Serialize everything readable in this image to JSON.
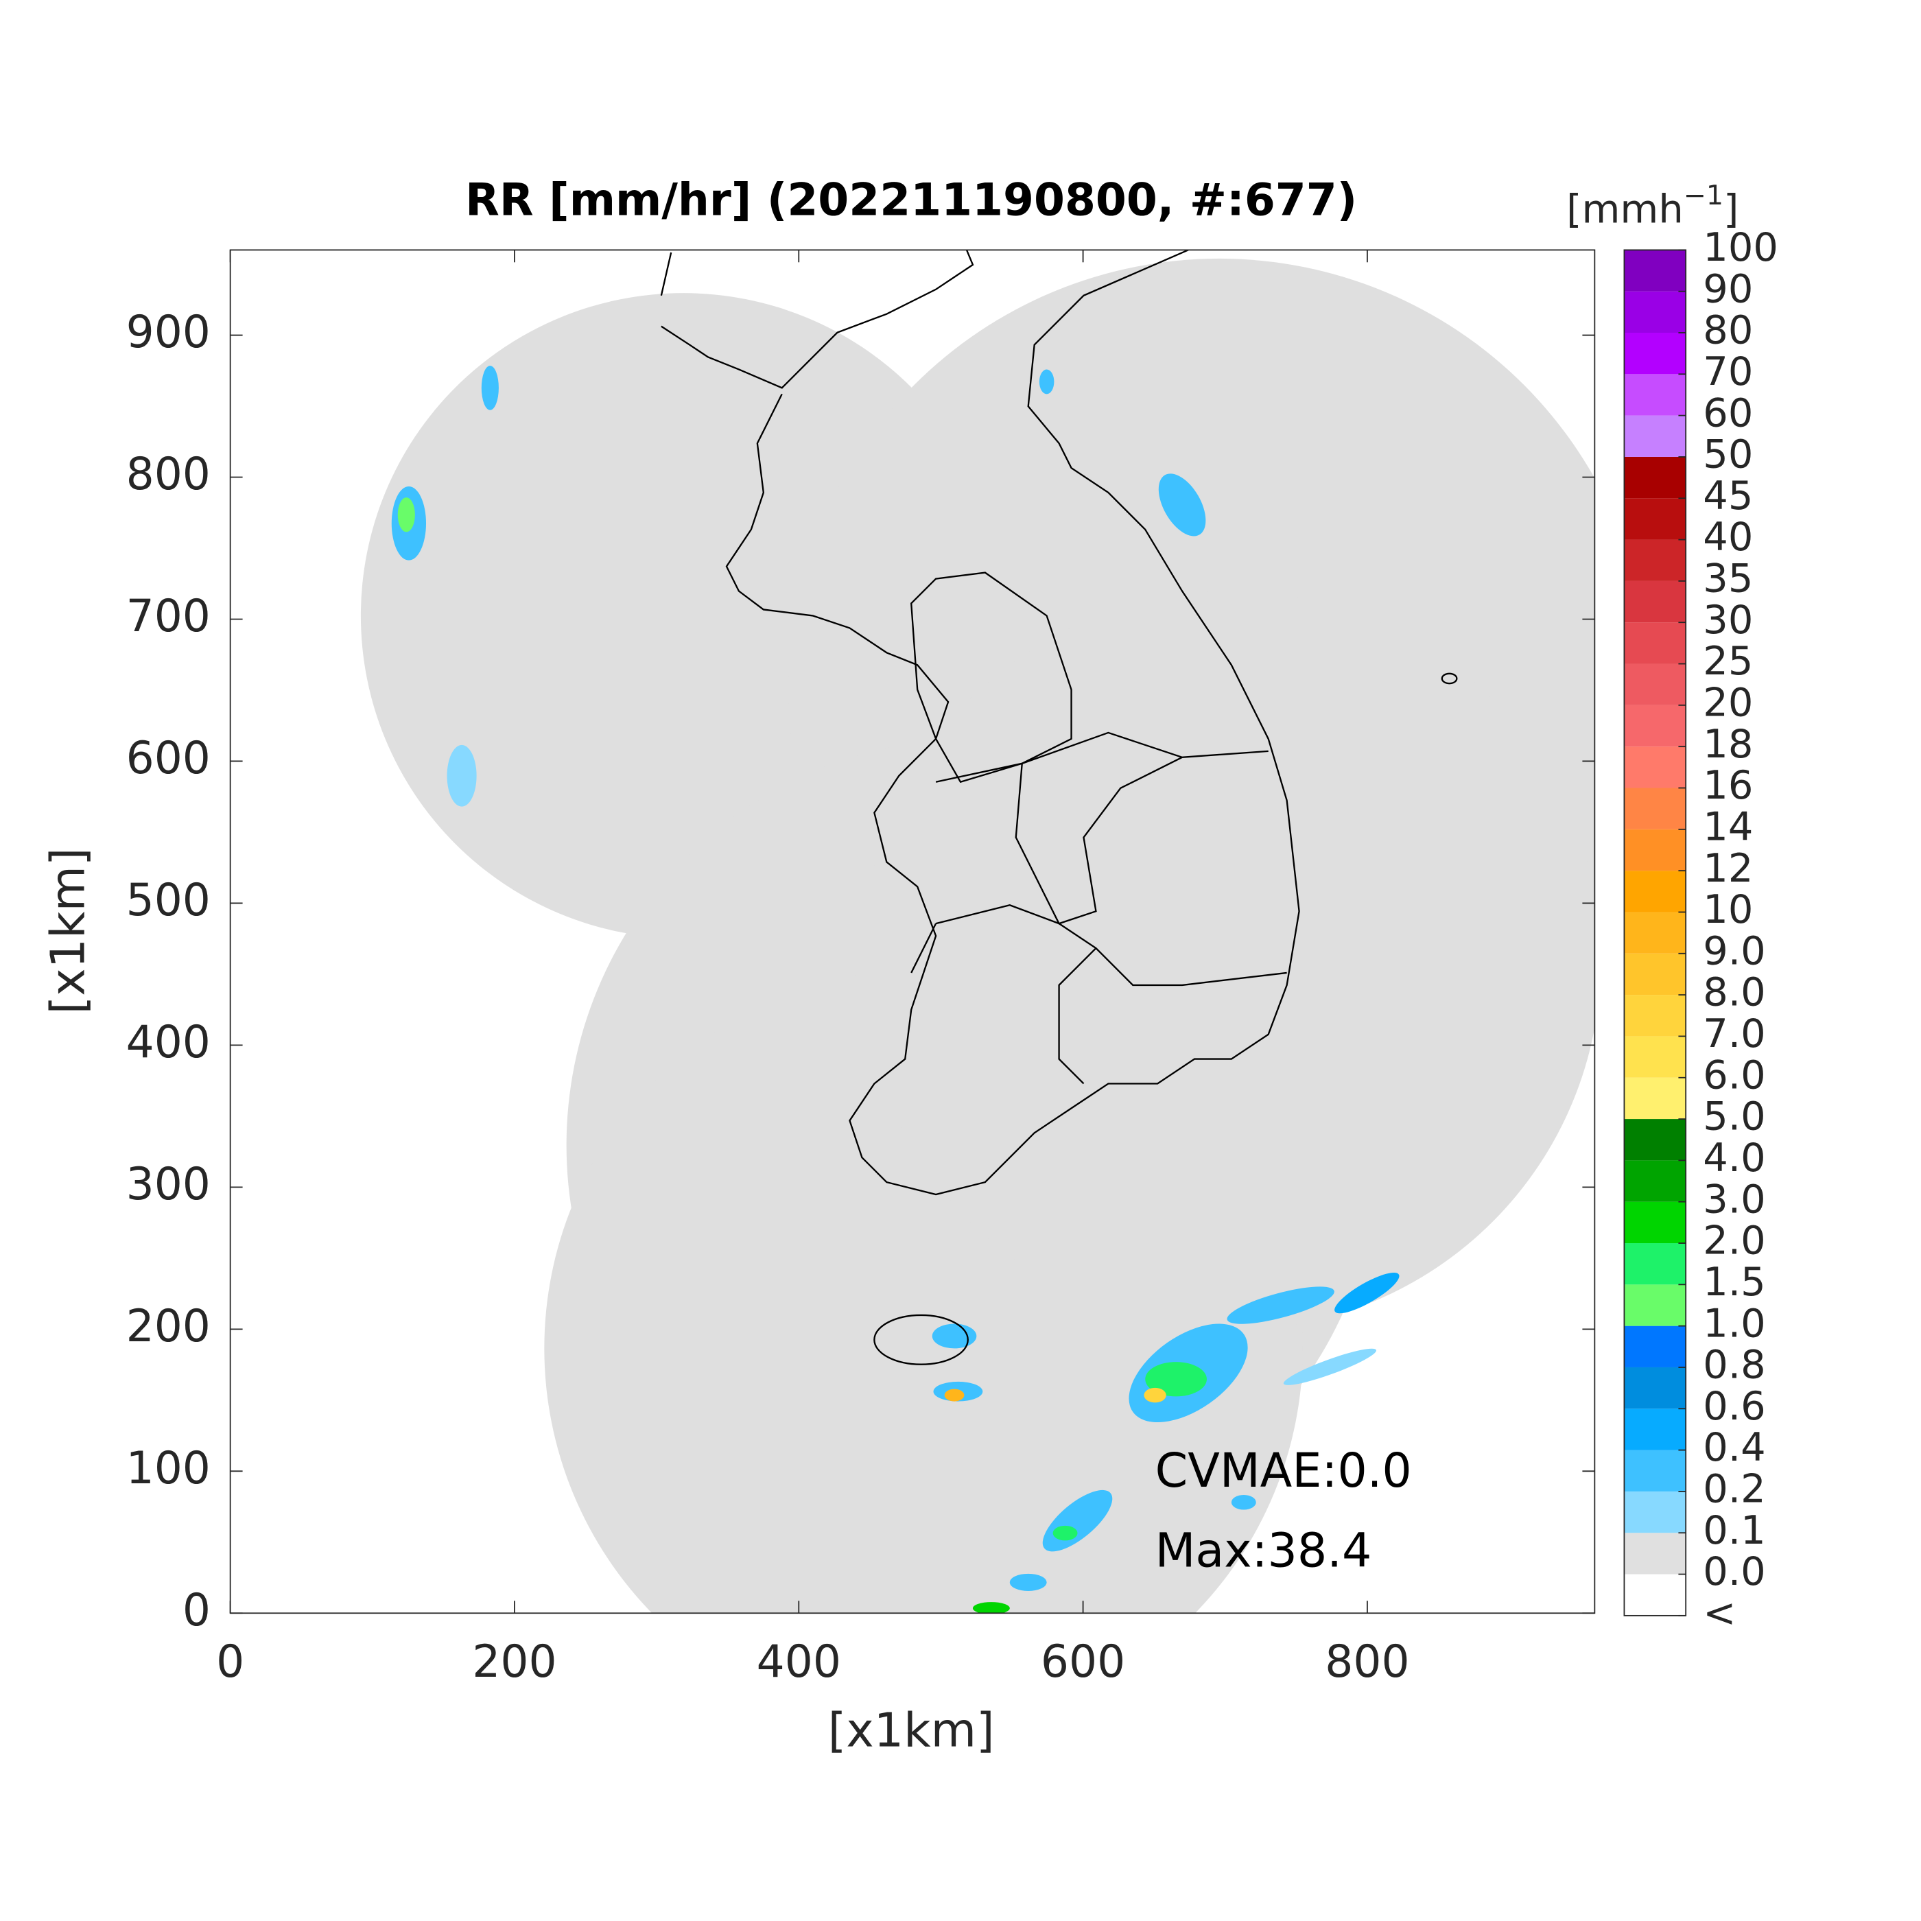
{
  "chart_data": {
    "type": "map",
    "title": "RR [mm/hr] (202211190800, #:677)",
    "x_label": "[x1km]",
    "y_label": "[x1km]",
    "xlim": [
      0,
      960
    ],
    "ylim": [
      0,
      960
    ],
    "xticks": [
      0,
      200,
      400,
      600,
      800
    ],
    "yticks": [
      0,
      100,
      200,
      300,
      400,
      500,
      600,
      700,
      800,
      900
    ],
    "annotations": [
      "CVMAE:0.0",
      "Max:38.4"
    ],
    "colorbar": {
      "label": "[mmh",
      "label_sup": "−1",
      "label_end": "]",
      "levels": [
        "<",
        "0.0",
        "0.1",
        "0.2",
        "0.4",
        "0.6",
        "0.8",
        "1.0",
        "1.5",
        "2.0",
        "3.0",
        "4.0",
        "5.0",
        "6.0",
        "7.0",
        "8.0",
        "9.0",
        "10",
        "12",
        "14",
        "16",
        "18",
        "20",
        "25",
        "30",
        "35",
        "40",
        "45",
        "50",
        "60",
        "70",
        "80",
        "90",
        "100"
      ],
      "colors": [
        "#ffffff",
        "#e0e0e0",
        "#87d9ff",
        "#3ec1ff",
        "#07abff",
        "#008dde",
        "#0077ff",
        "#69fc69",
        "#1ef269",
        "#00d500",
        "#00a400",
        "#008000",
        "#fff06e",
        "#ffe24e",
        "#ffd43c",
        "#ffc52b",
        "#ffb51b",
        "#ffa500",
        "#ff9025",
        "#ff8545",
        "#ff7a6a",
        "#f6686b",
        "#ee5a61",
        "#e64a52",
        "#d9363f",
        "#cc2528",
        "#b80e0e",
        "#a80000",
        "#c680ff",
        "#c64cff",
        "#b300ff",
        "#9a00e6",
        "#8000c0",
        "#333333"
      ]
    }
  }
}
